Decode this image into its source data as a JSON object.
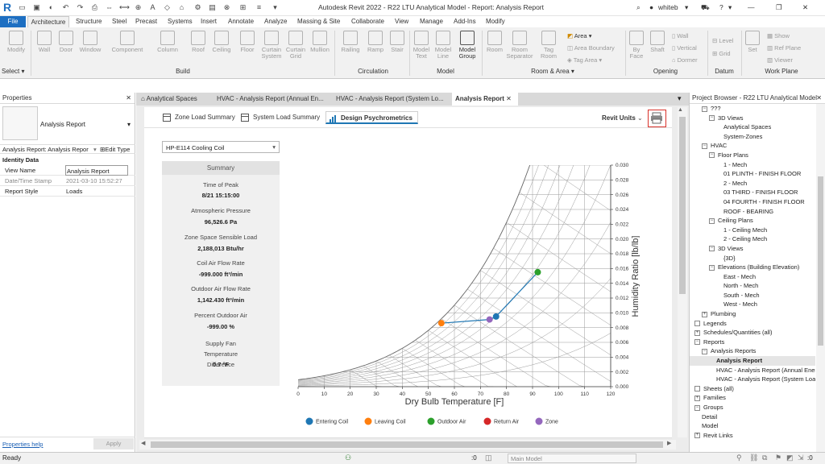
{
  "window": {
    "title": "Autodesk Revit 2022 - R22 LTU Analytical Model - Report: Analysis Report",
    "user": "whiteb",
    "minimize": "—",
    "restore": "❐",
    "close": "✕"
  },
  "ribbon_tabs": [
    "File",
    "Architecture",
    "Structure",
    "Steel",
    "Precast",
    "Systems",
    "Insert",
    "Annotate",
    "Analyze",
    "Massing & Site",
    "Collaborate",
    "View",
    "Manage",
    "Add-Ins",
    "Modify"
  ],
  "ribbon": {
    "select_label": "Select",
    "tools": {
      "modify": "Modify",
      "wall": "Wall",
      "door": "Door",
      "window": "Window",
      "component": "Component",
      "column": "Column",
      "roof": "Roof",
      "ceiling": "Ceiling",
      "floor": "Floor",
      "curtain_system": "Curtain System",
      "curtain_grid": "Curtain Grid",
      "mullion": "Mullion",
      "railing": "Railing",
      "ramp": "Ramp",
      "stair": "Stair",
      "model_text": "Model Text",
      "model_line": "Model Line",
      "model_group": "Model Group",
      "room": "Room",
      "room_separator": "Room Separator",
      "tag_room": "Tag Room",
      "area": "Area",
      "area_boundary": "Area Boundary",
      "tag_area": "Tag Area",
      "by_face": "By Face",
      "shaft": "Shaft",
      "wall_o": "Wall",
      "vertical": "Vertical",
      "dormer": "Dormer",
      "level": "Level",
      "grid": "Grid",
      "set": "Set",
      "show": "Show",
      "ref_plane": "Ref Plane",
      "viewer": "Viewer"
    },
    "groups": {
      "build": "Build",
      "circulation": "Circulation",
      "model": "Model",
      "room_area": "Room & Area",
      "opening": "Opening",
      "datum": "Datum",
      "work_plane": "Work Plane"
    }
  },
  "properties": {
    "title": "Properties",
    "close": "✕",
    "type_name": "Analysis Report",
    "selector": "Analysis Report: Analysis Repor",
    "edit_type": "Edit Type",
    "section": "Identity Data",
    "rows": [
      [
        "View Name",
        "Analysis Report"
      ],
      [
        "Date/Time Stamp",
        "2021-03-10 15:52:27"
      ],
      [
        "Report Style",
        "Loads"
      ]
    ],
    "help": "Properties help",
    "apply": "Apply"
  },
  "view_tabs": [
    "Analytical Spaces",
    "HVAC - Analysis Report (Annual En...",
    "HVAC - Analysis Report (System Lo...",
    "Analysis Report"
  ],
  "view_tab_close": "✕",
  "report": {
    "tabs": [
      "Zone Load Summary",
      "System Load Summary",
      "Design Psychrometrics"
    ],
    "units": "Revit Units",
    "coil_select": "HP-E114 Cooling Coil",
    "summary_title": "Summary",
    "summary": [
      {
        "label": "Time of Peak",
        "value": "8/21 15:15:00"
      },
      {
        "label": "Atmospheric Pressure",
        "value": "96,526.6 Pa"
      },
      {
        "label": "Zone Space Sensible Load",
        "value": "2,188,013 Btu/hr"
      },
      {
        "label": "Coil Air Flow Rate",
        "value": "-999.000 ft³/min"
      },
      {
        "label": "Outdoor Air Flow Rate",
        "value": "1,142.430 ft³/min"
      },
      {
        "label": "Percent Outdoor Air",
        "value": "-999.00 %"
      },
      {
        "label": "Supply Fan Temperature Difference",
        "value": "0.7 °F"
      }
    ]
  },
  "chart_data": {
    "type": "scatter",
    "xlabel": "Dry Bulb Temperature [F]",
    "ylabel": "Humidity Ratio [lb/lb]",
    "xlim": [
      0,
      120
    ],
    "ylim": [
      0,
      0.03
    ],
    "x_ticks": [
      0,
      10,
      20,
      30,
      40,
      50,
      60,
      70,
      80,
      90,
      100,
      110,
      120
    ],
    "y_ticks": [
      "0.000",
      "0.002",
      "0.004",
      "0.006",
      "0.008",
      "0.010",
      "0.012",
      "0.014",
      "0.016",
      "0.018",
      "0.020",
      "0.022",
      "0.024",
      "0.026",
      "0.028",
      "0.030"
    ],
    "grid": "psychrometric",
    "legend": "bottom",
    "series": [
      {
        "name": "Entering Coil",
        "color": "#1f77b4",
        "x": 76,
        "y": 0.0095
      },
      {
        "name": "Leaving Coil",
        "color": "#ff7f0e",
        "x": 55,
        "y": 0.0086
      },
      {
        "name": "Outdoor Air",
        "color": "#2ca02c",
        "x": 92,
        "y": 0.0155
      },
      {
        "name": "Return Air",
        "color": "#d62728",
        "x": null,
        "y": null
      },
      {
        "name": "Zone",
        "color": "#9467bd",
        "x": 73.5,
        "y": 0.0091
      }
    ],
    "lines": [
      [
        55,
        0.0086
      ],
      [
        73.5,
        0.0091
      ],
      [
        76,
        0.0095
      ],
      [
        92,
        0.0155
      ]
    ]
  },
  "browser": {
    "title": "Project Browser - R22 LTU Analytical Model",
    "close": "✕",
    "items": [
      {
        "t": "???",
        "d": 1,
        "box": "−"
      },
      {
        "t": "3D Views",
        "d": 2,
        "box": "−"
      },
      {
        "t": "Analytical Spaces",
        "d": 4
      },
      {
        "t": "System-Zones",
        "d": 4
      },
      {
        "t": "HVAC",
        "d": 1,
        "box": "−"
      },
      {
        "t": "Floor Plans",
        "d": 2,
        "box": "−"
      },
      {
        "t": "1 - Mech",
        "d": 4
      },
      {
        "t": "01 PLINTH - FINISH FLOOR",
        "d": 4
      },
      {
        "t": "2 - Mech",
        "d": 4
      },
      {
        "t": "03 THIRD - FINISH FLOOR",
        "d": 4
      },
      {
        "t": "04 FOURTH - FINISH FLOOR",
        "d": 4
      },
      {
        "t": "ROOF - BEARING",
        "d": 4
      },
      {
        "t": "Ceiling Plans",
        "d": 2,
        "box": "−"
      },
      {
        "t": "1 - Ceiling Mech",
        "d": 4
      },
      {
        "t": "2 - Ceiling Mech",
        "d": 4
      },
      {
        "t": "3D Views",
        "d": 2,
        "box": "−"
      },
      {
        "t": "{3D}",
        "d": 4
      },
      {
        "t": "Elevations (Building Elevation)",
        "d": 2,
        "box": "−"
      },
      {
        "t": "East - Mech",
        "d": 4
      },
      {
        "t": "North - Mech",
        "d": 4
      },
      {
        "t": "South - Mech",
        "d": 4
      },
      {
        "t": "West - Mech",
        "d": 4
      },
      {
        "t": "Plumbing",
        "d": 1,
        "box": "+"
      },
      {
        "t": "Legends",
        "d": 0,
        "box": ""
      },
      {
        "t": "Schedules/Quantities (all)",
        "d": 0,
        "box": "+"
      },
      {
        "t": "Reports",
        "d": 0,
        "box": "−"
      },
      {
        "t": "Analysis Reports",
        "d": 1,
        "box": "−"
      },
      {
        "t": "Analysis Report",
        "d": 3,
        "bold": true
      },
      {
        "t": "HVAC - Analysis Report (Annual Energy)",
        "d": 3
      },
      {
        "t": "HVAC - Analysis Report (System Loads)",
        "d": 3
      },
      {
        "t": "Sheets (all)",
        "d": 0,
        "box": ""
      },
      {
        "t": "Families",
        "d": 0,
        "box": "+"
      },
      {
        "t": "Groups",
        "d": 0,
        "box": "−"
      },
      {
        "t": "Detail",
        "d": 1
      },
      {
        "t": "Model",
        "d": 1
      },
      {
        "t": "Revit Links",
        "d": 0,
        "box": "+"
      }
    ]
  },
  "status": {
    "text": "Ready",
    "zero1": ":0",
    "model": "Main Model",
    "zero2": ":0"
  }
}
